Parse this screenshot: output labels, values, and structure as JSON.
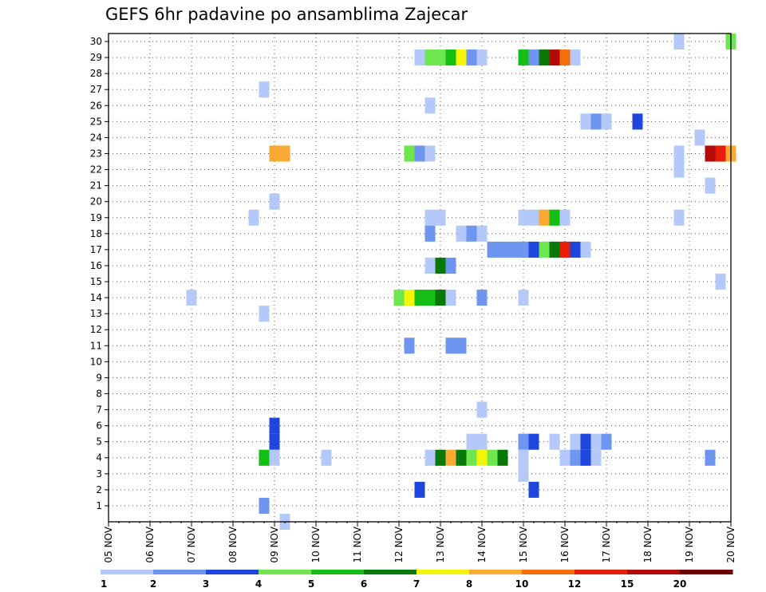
{
  "chart_data": {
    "type": "heatmap",
    "title": "GEFS 6hr padavine po ansamblima Zajecar",
    "xlabel": "",
    "ylabel": "",
    "x_ticks": [
      "05 NOV",
      "06 NOV",
      "07 NOV",
      "08 NOV",
      "09 NOV",
      "10 NOV",
      "11 NOV",
      "12 NOV",
      "13 NOV",
      "14 NOV",
      "15 NOV",
      "16 NOV",
      "17 NOV",
      "18 NOV",
      "19 NOV",
      "20 NOV"
    ],
    "x_range_days": [
      0,
      15
    ],
    "y_range": [
      0,
      30
    ],
    "y_ticks": [
      1,
      2,
      3,
      4,
      5,
      6,
      7,
      8,
      9,
      10,
      11,
      12,
      13,
      14,
      15,
      16,
      17,
      18,
      19,
      20,
      21,
      22,
      23,
      24,
      25,
      26,
      27,
      28,
      29,
      30
    ],
    "grid": true,
    "legend": {
      "placement": "bottom",
      "levels": [
        1,
        2,
        3,
        4,
        5,
        6,
        7,
        8,
        10,
        12,
        15,
        20
      ],
      "colors": [
        "#b4c8fa",
        "#6e96f0",
        "#1e46dc",
        "#6ee650",
        "#14be14",
        "#087808",
        "#f5f50a",
        "#faaa32",
        "#f56e0a",
        "#e61e0a",
        "#b40a0a",
        "#6e0000"
      ]
    },
    "cells": [
      [
        13.75,
        30,
        1
      ],
      [
        15.0,
        30,
        4
      ],
      [
        7.5,
        29,
        1
      ],
      [
        7.75,
        29,
        4
      ],
      [
        8.0,
        29,
        4
      ],
      [
        8.25,
        29,
        5
      ],
      [
        8.5,
        29,
        7
      ],
      [
        8.75,
        29,
        2
      ],
      [
        9.0,
        29,
        1
      ],
      [
        10.0,
        29,
        5
      ],
      [
        10.25,
        29,
        2
      ],
      [
        10.5,
        29,
        6
      ],
      [
        10.75,
        29,
        11
      ],
      [
        11.0,
        29,
        9
      ],
      [
        11.25,
        29,
        1
      ],
      [
        3.75,
        27,
        1
      ],
      [
        7.75,
        26,
        1
      ],
      [
        11.5,
        25,
        1
      ],
      [
        11.75,
        25,
        2
      ],
      [
        12.0,
        25,
        1
      ],
      [
        12.75,
        25,
        3
      ],
      [
        14.25,
        24,
        1
      ],
      [
        4.0,
        23,
        8
      ],
      [
        4.25,
        23,
        8
      ],
      [
        7.25,
        23,
        4
      ],
      [
        7.5,
        23,
        2
      ],
      [
        7.75,
        23,
        1
      ],
      [
        13.75,
        23,
        1
      ],
      [
        14.5,
        23,
        11
      ],
      [
        14.75,
        23,
        10
      ],
      [
        15.0,
        23,
        8
      ],
      [
        13.75,
        22,
        1
      ],
      [
        14.5,
        21,
        1
      ],
      [
        4.0,
        20,
        1
      ],
      [
        3.5,
        19,
        1
      ],
      [
        7.75,
        19,
        1
      ],
      [
        8.0,
        19,
        1
      ],
      [
        10.0,
        19,
        1
      ],
      [
        10.25,
        19,
        1
      ],
      [
        10.5,
        19,
        8
      ],
      [
        10.75,
        19,
        5
      ],
      [
        11.0,
        19,
        1
      ],
      [
        13.75,
        19,
        1
      ],
      [
        7.75,
        18,
        2
      ],
      [
        8.5,
        18,
        1
      ],
      [
        8.75,
        18,
        2
      ],
      [
        9.0,
        18,
        1
      ],
      [
        9.25,
        17,
        2
      ],
      [
        9.5,
        17,
        2
      ],
      [
        9.75,
        17,
        2
      ],
      [
        10.0,
        17,
        2
      ],
      [
        10.25,
        17,
        3
      ],
      [
        10.5,
        17,
        4
      ],
      [
        10.75,
        17,
        6
      ],
      [
        11.0,
        17,
        10
      ],
      [
        11.25,
        17,
        3
      ],
      [
        11.5,
        17,
        1
      ],
      [
        7.75,
        16,
        1
      ],
      [
        8.0,
        16,
        6
      ],
      [
        8.25,
        16,
        2
      ],
      [
        14.75,
        15,
        1
      ],
      [
        2.0,
        14,
        1
      ],
      [
        7.0,
        14,
        4
      ],
      [
        7.25,
        14,
        7
      ],
      [
        7.5,
        14,
        5
      ],
      [
        7.75,
        14,
        5
      ],
      [
        8.0,
        14,
        6
      ],
      [
        8.25,
        14,
        1
      ],
      [
        9.0,
        14,
        2
      ],
      [
        10.0,
        14,
        1
      ],
      [
        3.75,
        13,
        1
      ],
      [
        7.25,
        11,
        2
      ],
      [
        8.25,
        11,
        2
      ],
      [
        8.5,
        11,
        2
      ],
      [
        9.0,
        7,
        1
      ],
      [
        4.0,
        6,
        3
      ],
      [
        4.0,
        5,
        3
      ],
      [
        8.75,
        5,
        1
      ],
      [
        9.0,
        5,
        1
      ],
      [
        10.0,
        5,
        2
      ],
      [
        10.25,
        5,
        3
      ],
      [
        10.75,
        5,
        1
      ],
      [
        11.25,
        5,
        1
      ],
      [
        11.5,
        5,
        3
      ],
      [
        11.75,
        5,
        1
      ],
      [
        12.0,
        5,
        2
      ],
      [
        3.75,
        4,
        5
      ],
      [
        4.0,
        4,
        1
      ],
      [
        5.25,
        4,
        1
      ],
      [
        7.75,
        4,
        1
      ],
      [
        8.0,
        4,
        6
      ],
      [
        8.25,
        4,
        8
      ],
      [
        8.5,
        4,
        6
      ],
      [
        8.75,
        4,
        4
      ],
      [
        9.0,
        4,
        7
      ],
      [
        9.25,
        4,
        4
      ],
      [
        9.5,
        4,
        6
      ],
      [
        10.0,
        4,
        1
      ],
      [
        11.0,
        4,
        1
      ],
      [
        11.25,
        4,
        2
      ],
      [
        11.5,
        4,
        3
      ],
      [
        11.75,
        4,
        1
      ],
      [
        14.5,
        4,
        2
      ],
      [
        10.0,
        3,
        1
      ],
      [
        7.5,
        2,
        3
      ],
      [
        10.25,
        2,
        3
      ],
      [
        3.75,
        1,
        2
      ],
      [
        4.25,
        0,
        1
      ]
    ]
  }
}
